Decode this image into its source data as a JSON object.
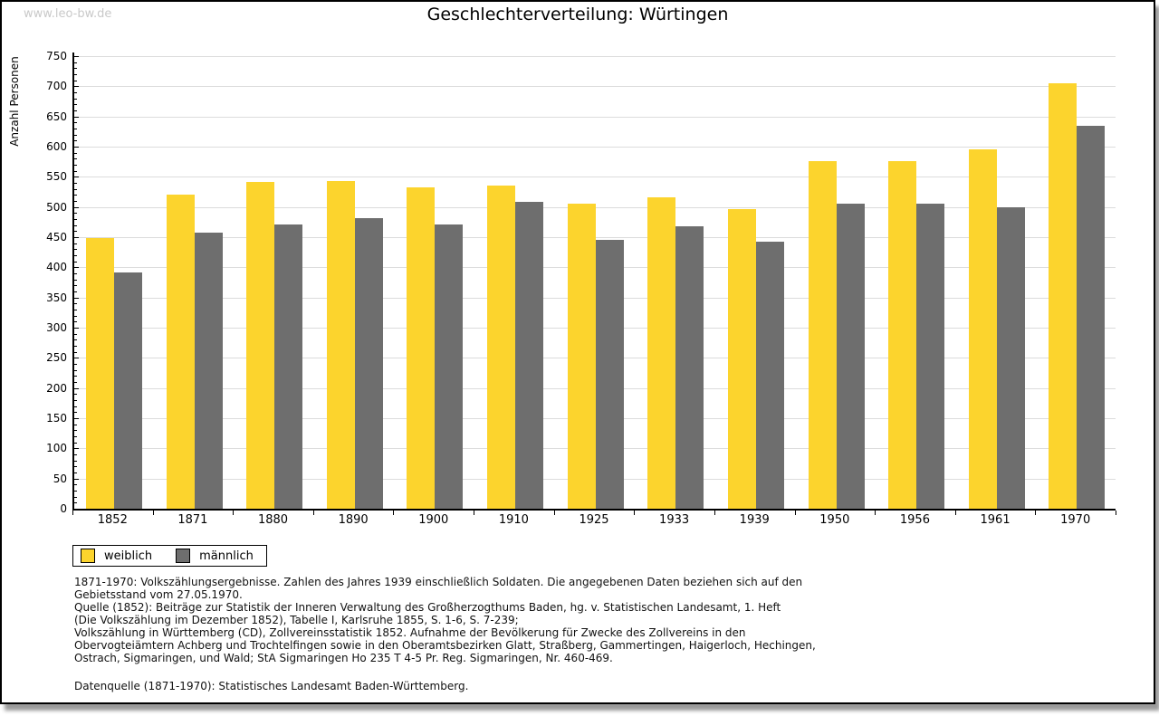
{
  "watermark": "www.leo-bw.de",
  "header": {
    "title": "Geschlechterverteilung: Würtingen"
  },
  "chart_data": {
    "type": "bar",
    "title": "Geschlechterverteilung: Würtingen",
    "xlabel": "",
    "ylabel": "Anzahl Personen",
    "ylim": [
      0,
      750
    ],
    "ytick_step": 50,
    "ytick_minor_step": 10,
    "grid": true,
    "legend_position": "bottom-left",
    "categories": [
      "1852",
      "1871",
      "1880",
      "1890",
      "1900",
      "1910",
      "1925",
      "1933",
      "1939",
      "1950",
      "1956",
      "1961",
      "1970"
    ],
    "series": [
      {
        "name": "weiblich",
        "color": "#FCD42D",
        "values": [
          448,
          521,
          542,
          543,
          532,
          535,
          505,
          516,
          497,
          576,
          576,
          596,
          705
        ]
      },
      {
        "name": "männlich",
        "color": "#6E6E6E",
        "values": [
          391,
          457,
          471,
          482,
          471,
          509,
          445,
          468,
          442,
          505,
          506,
          500,
          635
        ]
      }
    ]
  },
  "colors": {
    "gridline": "#dcdcdc",
    "axis": "#000000",
    "weiblich": "#FCD42D",
    "maennlich": "#6E6E6E"
  },
  "legend": {
    "items": [
      {
        "label": "weiblich"
      },
      {
        "label": "männlich"
      }
    ]
  },
  "footer": {
    "lines": [
      "1871-1970: Volkszählungsergebnisse. Zahlen des Jahres 1939 einschließlich Soldaten. Die angegebenen Daten beziehen sich auf den",
      "Gebietsstand vom 27.05.1970.",
      "Quelle (1852): Beiträge zur Statistik der Inneren Verwaltung des Großherzogthums Baden, hg. v. Statistischen Landesamt, 1. Heft",
      "(Die Volkszählung im Dezember 1852), Tabelle I, Karlsruhe 1855, S. 1-6, S. 7-239;",
      "Volkszählung in Württemberg (CD), Zollvereinsstatistik 1852. Aufnahme der Bevölkerung für Zwecke des Zollvereins in den",
      "Obervogteiämtern Achberg und Trochtelfingen sowie in den Oberamtsbezirken Glatt, Straßberg, Gammertingen, Haigerloch, Hechingen,",
      "Ostrach, Sigmaringen, und Wald; StA Sigmaringen Ho 235 T 4-5 Pr. Reg. Sigmaringen, Nr. 460-469."
    ],
    "datasource": "Datenquelle (1871-1970): Statistisches Landesamt Baden-Württemberg."
  }
}
